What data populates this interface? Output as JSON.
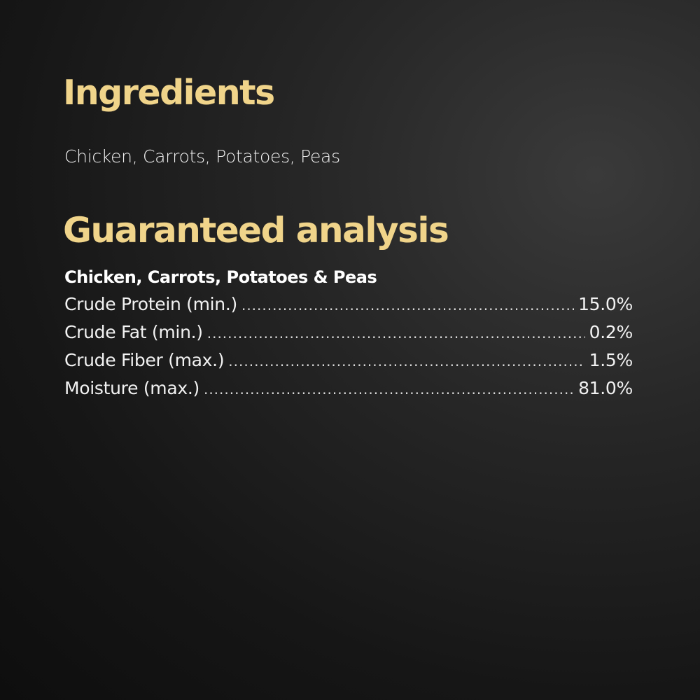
{
  "ingredients": {
    "title": "Ingredients",
    "text": "Chicken, Carrots, Potatoes, Peas"
  },
  "analysis": {
    "title": "Guaranteed analysis",
    "subtitle": "Chicken, Carrots, Potatoes & Peas",
    "rows": [
      {
        "label": "Crude Protein (min.)",
        "value": "15.0%"
      },
      {
        "label": "Crude Fat (min.)",
        "value": "0.2%"
      },
      {
        "label": "Crude Fiber (max.)",
        "value": "1.5%"
      },
      {
        "label": "Moisture (max.)",
        "value": "81.0%"
      }
    ]
  },
  "colors": {
    "heading": "#f0d48a",
    "text": "#ffffff",
    "background": "#1a1a1a"
  }
}
